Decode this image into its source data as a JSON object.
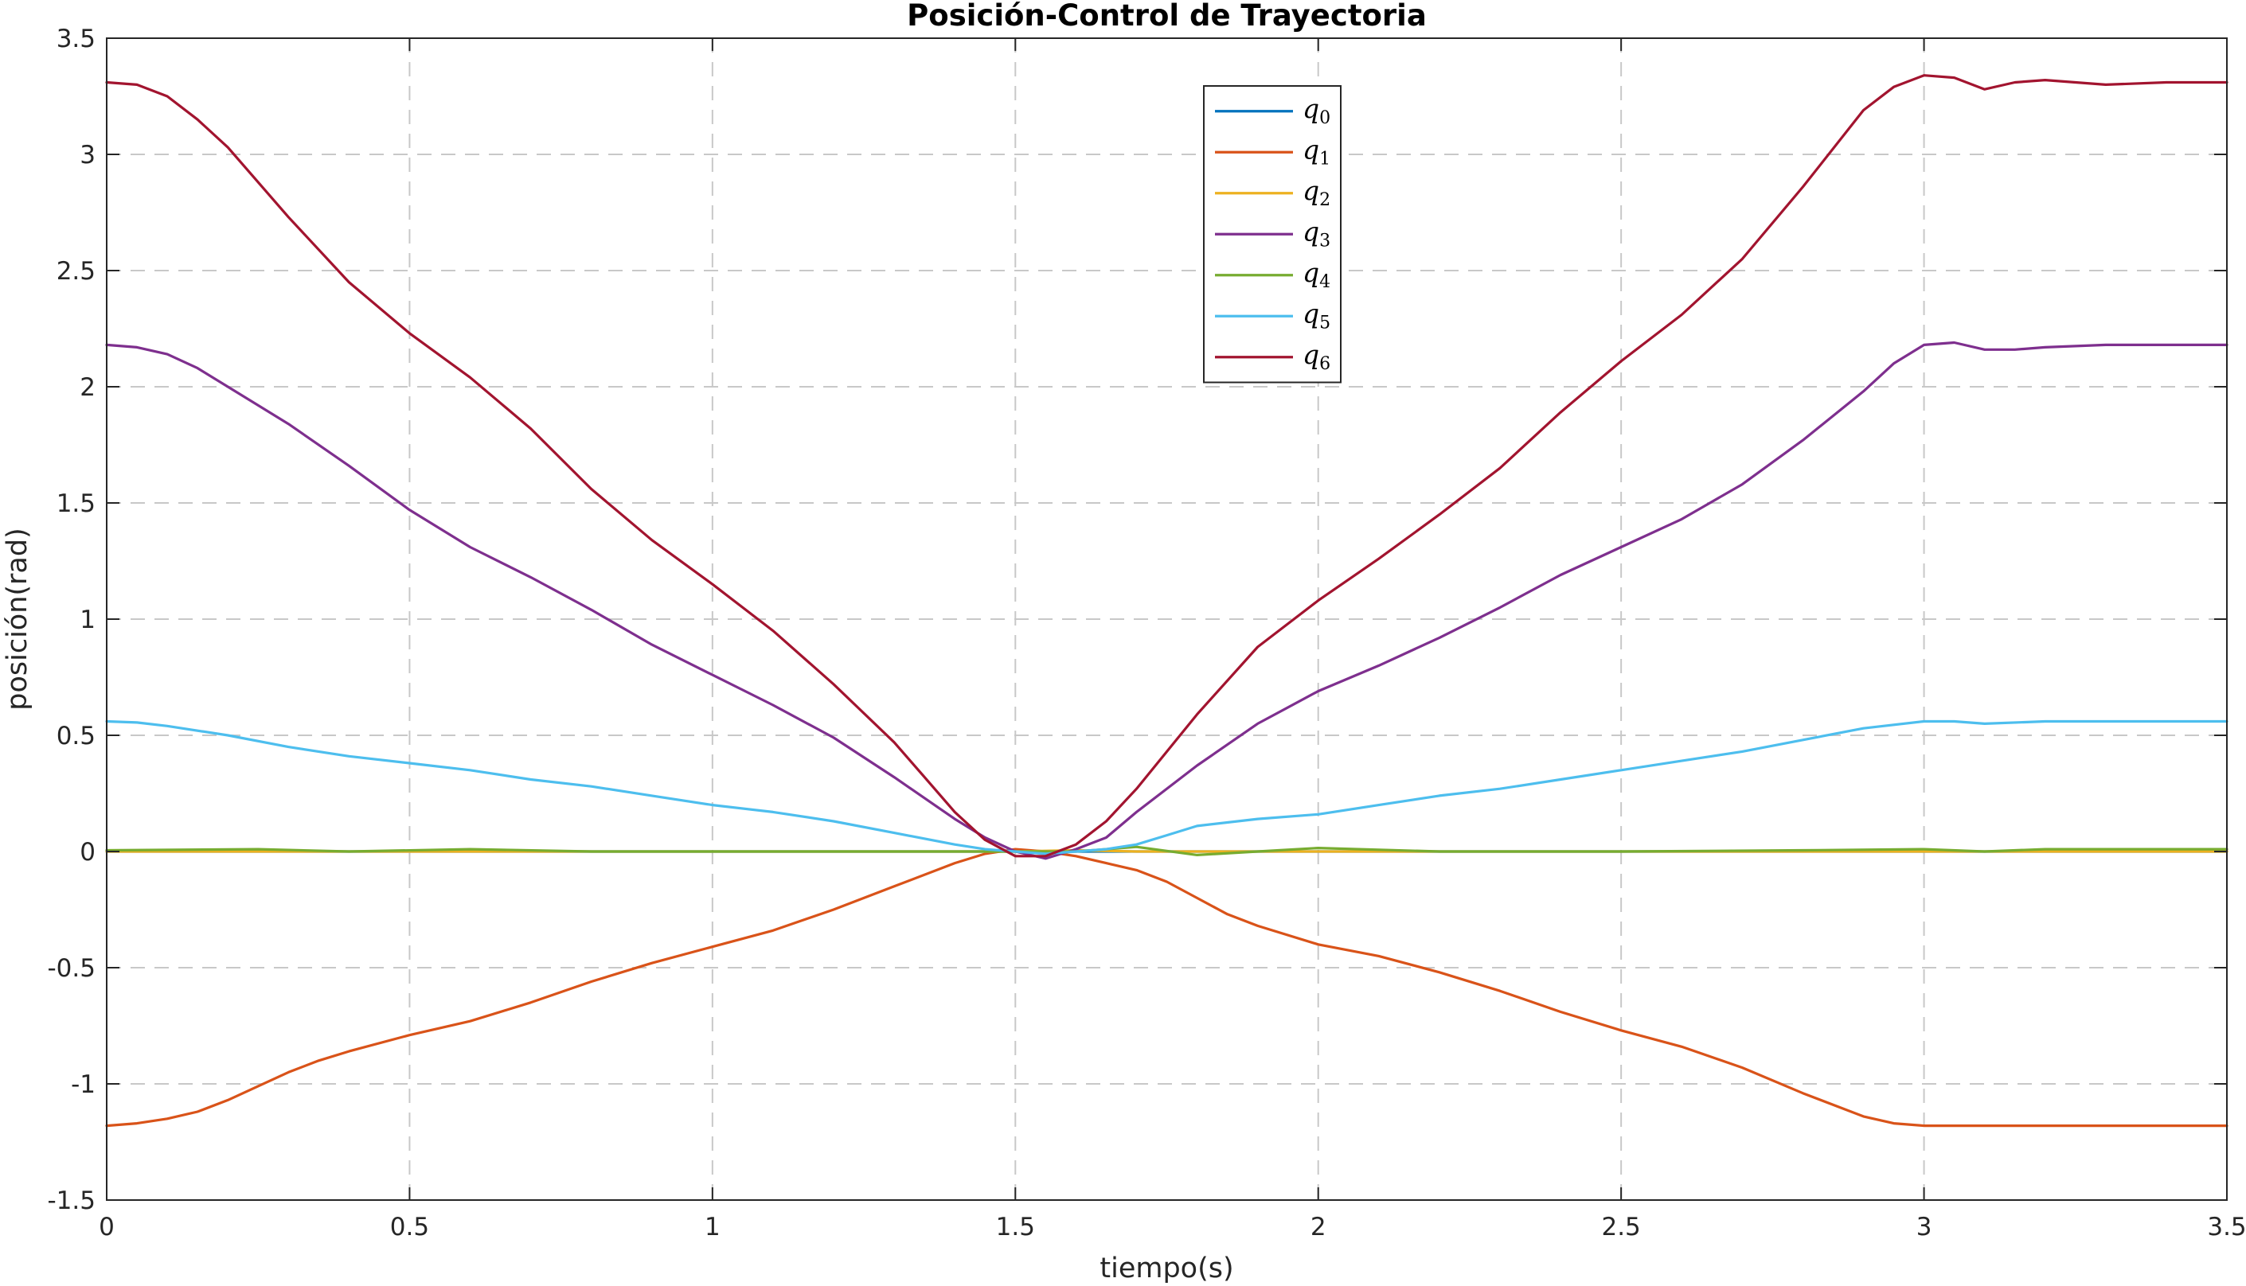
{
  "chart_data": {
    "type": "line",
    "title": "Posición-Control de Trayectoria",
    "xlabel": "tiempo(s)",
    "ylabel": "posición(rad)",
    "xlim": [
      0,
      3.5
    ],
    "ylim": [
      -1.5,
      3.5
    ],
    "xticks": [
      0,
      0.5,
      1,
      1.5,
      2,
      2.5,
      3,
      3.5
    ],
    "xtick_labels": [
      "0",
      "0.5",
      "1",
      "1.5",
      "2",
      "2.5",
      "3",
      "3.5"
    ],
    "yticks": [
      -1.5,
      -1,
      -0.5,
      0,
      0.5,
      1,
      1.5,
      2,
      2.5,
      3,
      3.5
    ],
    "ytick_labels": [
      "-1.5",
      "-1",
      "-0.5",
      "0",
      "0.5",
      "1",
      "1.5",
      "2",
      "2.5",
      "3",
      "3.5"
    ],
    "grid": true,
    "legend_position": "top-center",
    "series": [
      {
        "name": "q",
        "sub": "0",
        "color": "#0072BD",
        "x": [
          0,
          0.5,
          1,
          1.5,
          2,
          2.5,
          3,
          3.5
        ],
        "y": [
          0.0,
          0.0,
          0.0,
          0.0,
          0.0,
          0.0,
          0.0,
          0.0
        ]
      },
      {
        "name": "q",
        "sub": "1",
        "color": "#D95319",
        "x": [
          0.0,
          0.05,
          0.1,
          0.15,
          0.2,
          0.25,
          0.3,
          0.35,
          0.4,
          0.5,
          0.6,
          0.7,
          0.8,
          0.9,
          1.0,
          1.1,
          1.2,
          1.3,
          1.4,
          1.45,
          1.5,
          1.55,
          1.6,
          1.65,
          1.7,
          1.75,
          1.8,
          1.85,
          1.9,
          2.0,
          2.1,
          2.2,
          2.3,
          2.4,
          2.5,
          2.6,
          2.7,
          2.8,
          2.9,
          2.95,
          3.0,
          3.05,
          3.1,
          3.2,
          3.3,
          3.4,
          3.5
        ],
        "y": [
          -1.18,
          -1.17,
          -1.15,
          -1.12,
          -1.07,
          -1.01,
          -0.95,
          -0.9,
          -0.86,
          -0.79,
          -0.73,
          -0.65,
          -0.56,
          -0.48,
          -0.41,
          -0.34,
          -0.25,
          -0.15,
          -0.05,
          -0.01,
          0.01,
          0.0,
          -0.02,
          -0.05,
          -0.08,
          -0.13,
          -0.2,
          -0.27,
          -0.32,
          -0.4,
          -0.45,
          -0.52,
          -0.6,
          -0.69,
          -0.77,
          -0.84,
          -0.93,
          -1.04,
          -1.14,
          -1.17,
          -1.18,
          -1.18,
          -1.18,
          -1.18,
          -1.18,
          -1.18,
          -1.18
        ]
      },
      {
        "name": "q",
        "sub": "2",
        "color": "#EDB120",
        "x": [
          0,
          0.5,
          1,
          1.5,
          1.6,
          1.7,
          2,
          2.5,
          3,
          3.5
        ],
        "y": [
          0.0,
          0.0,
          0.0,
          0.0,
          0.005,
          0.0,
          0.0,
          0.0,
          0.0,
          0.0
        ]
      },
      {
        "name": "q",
        "sub": "3",
        "color": "#7E2F8E",
        "x": [
          0.0,
          0.05,
          0.1,
          0.15,
          0.2,
          0.3,
          0.4,
          0.5,
          0.6,
          0.7,
          0.8,
          0.9,
          1.0,
          1.1,
          1.2,
          1.3,
          1.4,
          1.45,
          1.5,
          1.55,
          1.6,
          1.65,
          1.7,
          1.8,
          1.9,
          2.0,
          2.1,
          2.2,
          2.3,
          2.4,
          2.5,
          2.6,
          2.7,
          2.8,
          2.9,
          2.95,
          3.0,
          3.05,
          3.1,
          3.15,
          3.2,
          3.3,
          3.4,
          3.5
        ],
        "y": [
          2.18,
          2.17,
          2.14,
          2.08,
          2.0,
          1.84,
          1.66,
          1.47,
          1.31,
          1.18,
          1.04,
          0.89,
          0.76,
          0.63,
          0.49,
          0.32,
          0.14,
          0.06,
          0.0,
          -0.03,
          0.01,
          0.06,
          0.17,
          0.37,
          0.55,
          0.69,
          0.8,
          0.92,
          1.05,
          1.19,
          1.31,
          1.43,
          1.58,
          1.77,
          1.98,
          2.1,
          2.18,
          2.19,
          2.16,
          2.16,
          2.17,
          2.18,
          2.18,
          2.18
        ]
      },
      {
        "name": "q",
        "sub": "4",
        "color": "#77AC30",
        "x": [
          0.0,
          0.25,
          0.4,
          0.6,
          0.8,
          1.0,
          1.2,
          1.4,
          1.5,
          1.6,
          1.7,
          1.8,
          1.9,
          2.0,
          2.2,
          2.5,
          2.8,
          3.0,
          3.1,
          3.2,
          3.35,
          3.5
        ],
        "y": [
          0.005,
          0.01,
          0.0,
          0.01,
          0.0,
          0.0,
          0.0,
          0.0,
          0.0,
          0.0,
          0.02,
          -0.015,
          0.0,
          0.015,
          0.0,
          0.0,
          0.005,
          0.01,
          0.0,
          0.01,
          0.01,
          0.01
        ]
      },
      {
        "name": "q",
        "sub": "5",
        "color": "#4DBEEE",
        "x": [
          0.0,
          0.05,
          0.1,
          0.2,
          0.3,
          0.4,
          0.5,
          0.6,
          0.7,
          0.8,
          0.9,
          1.0,
          1.1,
          1.2,
          1.3,
          1.4,
          1.45,
          1.5,
          1.55,
          1.6,
          1.65,
          1.7,
          1.75,
          1.8,
          1.9,
          2.0,
          2.1,
          2.2,
          2.3,
          2.4,
          2.5,
          2.6,
          2.7,
          2.8,
          2.9,
          3.0,
          3.05,
          3.1,
          3.2,
          3.3,
          3.4,
          3.5
        ],
        "y": [
          0.56,
          0.555,
          0.54,
          0.5,
          0.45,
          0.41,
          0.38,
          0.35,
          0.31,
          0.28,
          0.24,
          0.2,
          0.17,
          0.13,
          0.08,
          0.03,
          0.01,
          0.0,
          -0.01,
          0.0,
          0.01,
          0.03,
          0.07,
          0.11,
          0.14,
          0.16,
          0.2,
          0.24,
          0.27,
          0.31,
          0.35,
          0.39,
          0.43,
          0.48,
          0.53,
          0.56,
          0.56,
          0.55,
          0.56,
          0.56,
          0.56,
          0.56
        ]
      },
      {
        "name": "q",
        "sub": "6",
        "color": "#A2142F",
        "x": [
          0.0,
          0.05,
          0.1,
          0.15,
          0.2,
          0.3,
          0.4,
          0.5,
          0.6,
          0.7,
          0.8,
          0.9,
          1.0,
          1.1,
          1.2,
          1.3,
          1.35,
          1.4,
          1.45,
          1.5,
          1.55,
          1.6,
          1.65,
          1.7,
          1.8,
          1.9,
          2.0,
          2.1,
          2.2,
          2.3,
          2.4,
          2.5,
          2.6,
          2.7,
          2.8,
          2.9,
          2.95,
          3.0,
          3.05,
          3.1,
          3.15,
          3.2,
          3.3,
          3.4,
          3.5
        ],
        "y": [
          3.31,
          3.3,
          3.25,
          3.15,
          3.03,
          2.73,
          2.45,
          2.23,
          2.04,
          1.82,
          1.56,
          1.34,
          1.15,
          0.95,
          0.72,
          0.47,
          0.32,
          0.17,
          0.05,
          -0.02,
          -0.02,
          0.03,
          0.13,
          0.27,
          0.59,
          0.88,
          1.08,
          1.26,
          1.45,
          1.65,
          1.89,
          2.11,
          2.31,
          2.55,
          2.86,
          3.19,
          3.29,
          3.34,
          3.33,
          3.28,
          3.31,
          3.32,
          3.3,
          3.31,
          3.31
        ]
      }
    ]
  }
}
